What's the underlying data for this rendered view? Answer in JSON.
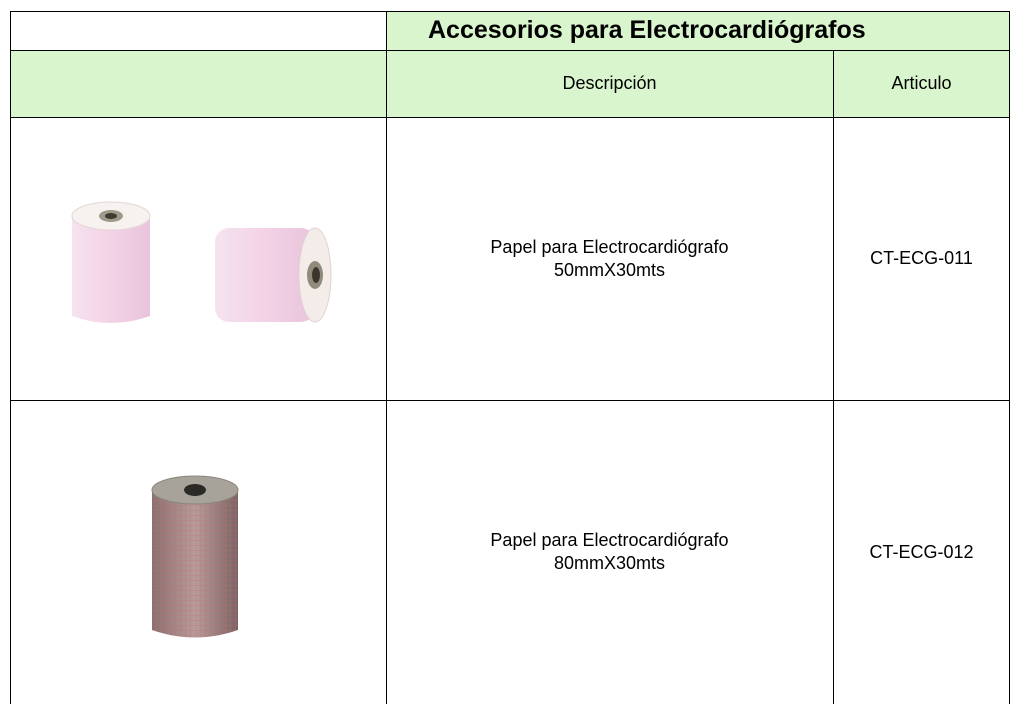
{
  "table": {
    "title": "Accesorios para Electrocardiógrafos",
    "header": [
      "Descripción",
      "Articulo"
    ],
    "rows": [
      {
        "description": [
          "Papel para Electrocardiógrafo",
          "50mmX30mts"
        ],
        "article": "CT-ECG-011"
      },
      {
        "description": [
          "Papel para Electrocardiógrafo",
          "80mmX30mts"
        ],
        "article": "CT-ECG-012"
      }
    ]
  }
}
